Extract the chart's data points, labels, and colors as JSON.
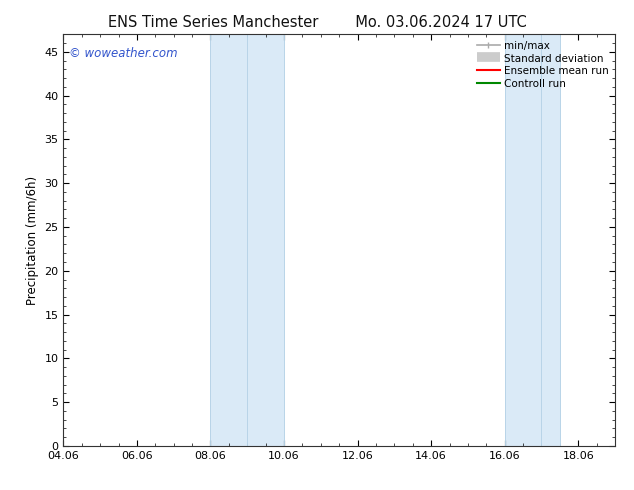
{
  "title_left": "ENS Time Series Manchester",
  "title_right": "Mo. 03.06.2024 17 UTC",
  "ylabel": "Precipitation (mm/6h)",
  "background_color": "#ffffff",
  "plot_bg_color": "#ffffff",
  "watermark": "© woweather.com",
  "watermark_color": "#3355cc",
  "xlim_start": 4.06,
  "xlim_end": 19.06,
  "ylim_min": 0,
  "ylim_max": 47.0,
  "xtick_labels": [
    "04.06",
    "06.06",
    "08.06",
    "10.06",
    "12.06",
    "14.06",
    "16.06",
    "18.06"
  ],
  "xtick_positions": [
    4.06,
    6.06,
    8.06,
    10.06,
    12.06,
    14.06,
    16.06,
    18.06
  ],
  "ytick_positions": [
    0,
    5,
    10,
    15,
    20,
    25,
    30,
    35,
    40,
    45
  ],
  "shaded_regions": [
    {
      "xmin": 8.06,
      "xmax": 10.06,
      "color": "#daeaf7"
    },
    {
      "xmin": 16.06,
      "xmax": 17.56,
      "color": "#daeaf7"
    }
  ],
  "shade_border_color": "#b8d4e8",
  "shade_border_lw": 0.7,
  "shade_borders": [
    8.06,
    9.06,
    10.06,
    16.06,
    17.06,
    17.56
  ],
  "legend_minmax_color": "#aaaaaa",
  "legend_std_color": "#cccccc",
  "legend_ens_color": "#ff0000",
  "legend_ctrl_color": "#008800",
  "title_fontsize": 10.5,
  "tick_fontsize": 8,
  "label_fontsize": 8.5,
  "watermark_fontsize": 8.5
}
